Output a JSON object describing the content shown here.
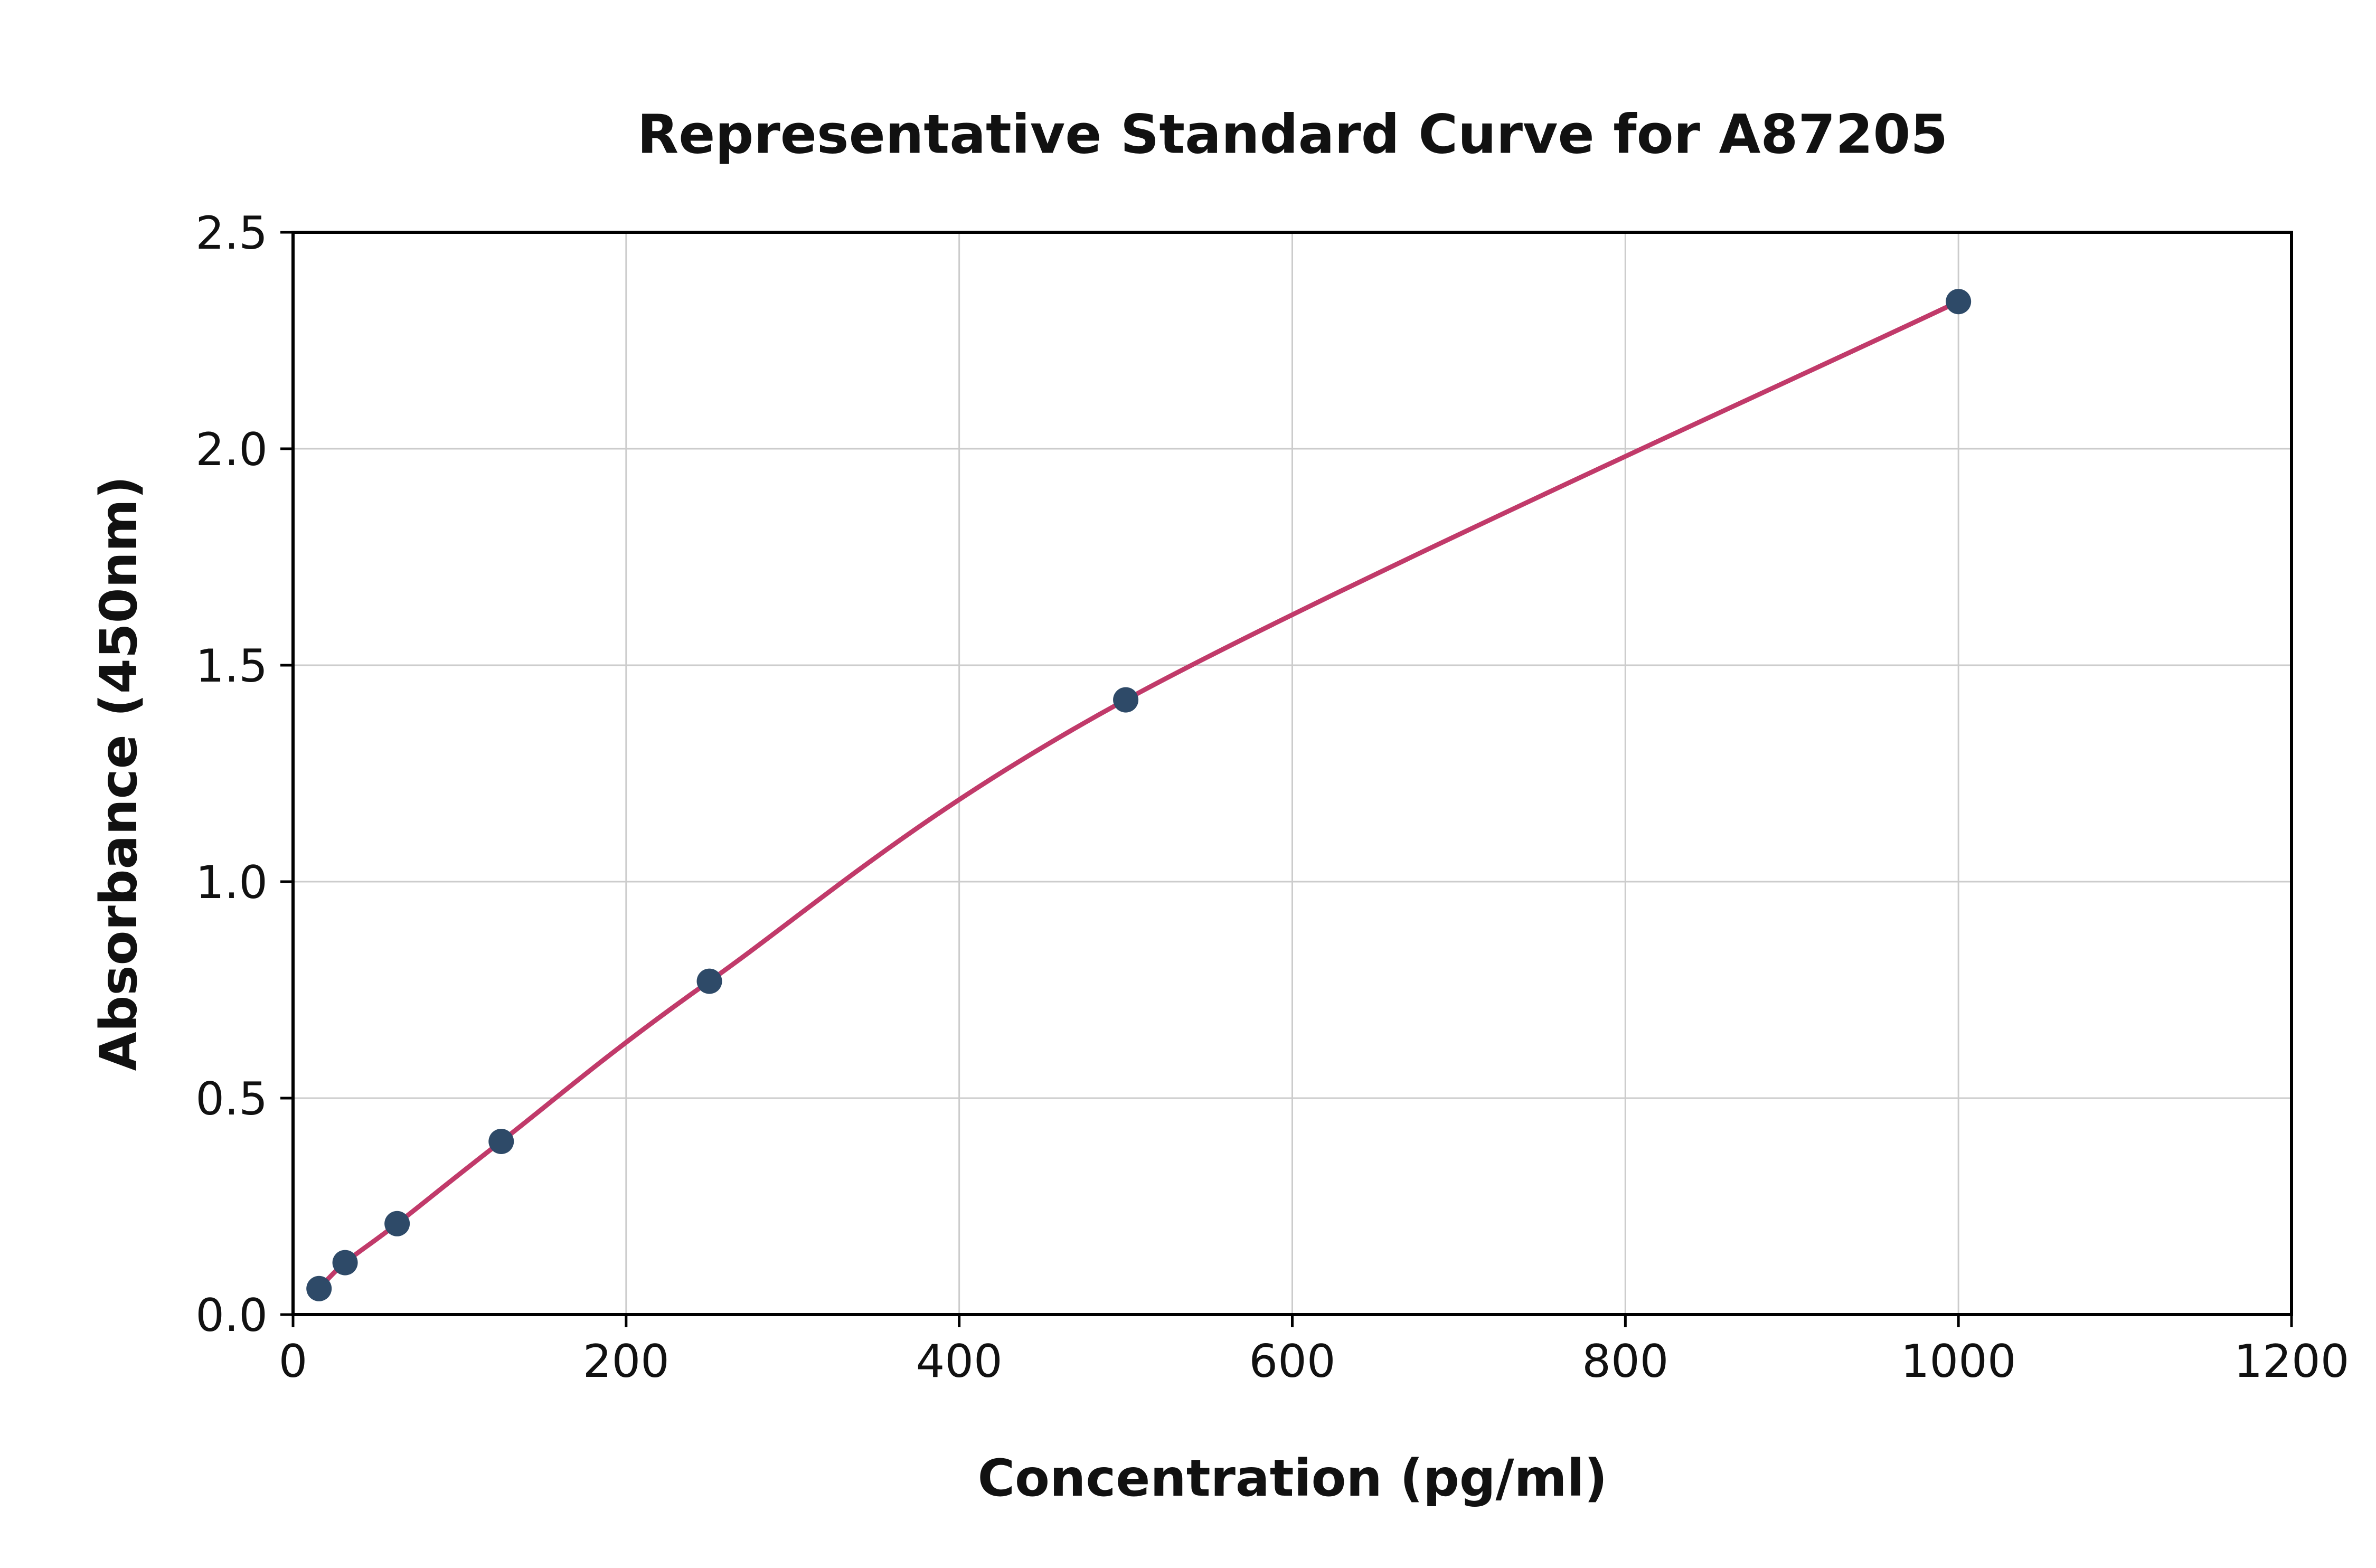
{
  "chart_data": {
    "type": "scatter",
    "title": "Representative Standard Curve for A87205",
    "xlabel": "Concentration (pg/ml)",
    "ylabel": "Absorbance (450nm)",
    "xlim": [
      0,
      1200
    ],
    "ylim": [
      0,
      2.5
    ],
    "x_ticks": [
      0,
      200,
      400,
      600,
      800,
      1000,
      1200
    ],
    "x_tick_labels": [
      "0",
      "200",
      "400",
      "600",
      "800",
      "1000",
      "1200"
    ],
    "y_ticks": [
      0.0,
      0.5,
      1.0,
      1.5,
      2.0,
      2.5
    ],
    "y_tick_labels": [
      "0.0",
      "0.5",
      "1.0",
      "1.5",
      "2.0",
      "2.5"
    ],
    "grid": true,
    "legend": "none",
    "series": [
      {
        "name": "standard-curve",
        "points": [
          [
            15.6,
            0.06
          ],
          [
            31.25,
            0.12
          ],
          [
            62.5,
            0.21
          ],
          [
            125,
            0.4
          ],
          [
            250,
            0.77
          ],
          [
            500,
            1.42
          ],
          [
            1000,
            2.34
          ]
        ]
      }
    ],
    "colors": {
      "line": "#c13a6a",
      "marker": "#2e4a68",
      "grid": "#cccccc",
      "spine": "#000000",
      "background": "#ffffff"
    }
  }
}
